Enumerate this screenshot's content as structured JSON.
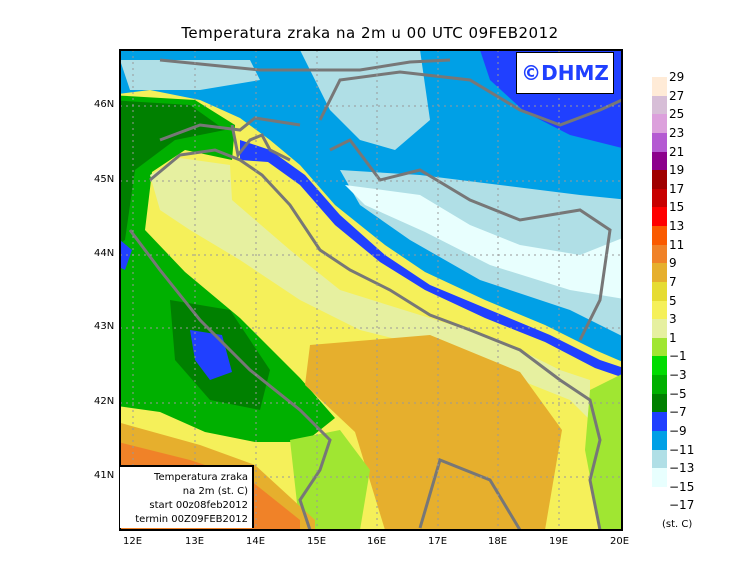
{
  "title": "Temperatura zraka na 2m u 00 UTC 09FEB2012",
  "logo": "©DHMZ",
  "info_box": {
    "line1": "Temperatura zraka",
    "line2": "na 2m (st. C)",
    "line3": "start 00z08feb2012",
    "line4": "termin 00Z09FEB2012"
  },
  "x_ticks": [
    "12E",
    "13E",
    "14E",
    "15E",
    "16E",
    "17E",
    "18E",
    "19E",
    "20E"
  ],
  "y_ticks": [
    "46N",
    "45N",
    "44N",
    "43N",
    "42N",
    "41N"
  ],
  "colorbar": {
    "labels": [
      "29",
      "27",
      "25",
      "23",
      "21",
      "19",
      "17",
      "15",
      "13",
      "11",
      "9",
      "7",
      "5",
      "3",
      "1",
      "−1",
      "−3",
      "−5",
      "−7",
      "−9",
      "−11",
      "−13",
      "−15",
      "−17"
    ],
    "colors": [
      "#ffebd7",
      "#d7bed7",
      "#dca0dc",
      "#b45ad2",
      "#8c008c",
      "#a00000",
      "#c80000",
      "#ff0000",
      "#fa5a00",
      "#f08228",
      "#e6af2d",
      "#e6dc32",
      "#f5f05a",
      "#e6f0a0",
      "#a0e632",
      "#00dc00",
      "#00b000",
      "#008000",
      "#2040ff",
      "#00a0e6",
      "#b0dfe6",
      "#e8fffe"
    ],
    "unit": "(st. C)"
  }
}
